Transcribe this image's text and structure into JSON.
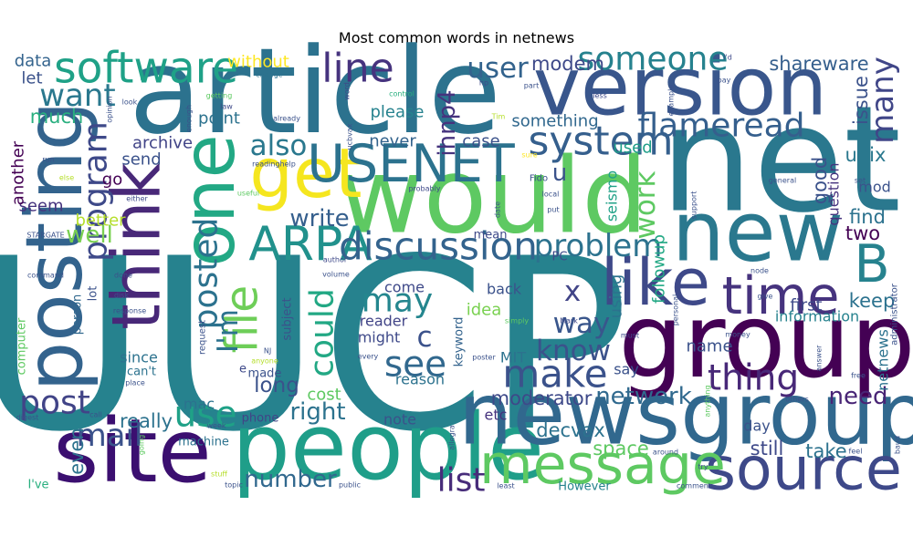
{
  "chart_data": {
    "type": "wordcloud",
    "title": "Most common words in netnews",
    "words": [
      {
        "text": "UUCP",
        "weight": 1.0,
        "color": "#26828e"
      },
      {
        "text": "net",
        "weight": 0.62,
        "color": "#2a788e"
      },
      {
        "text": "article",
        "weight": 0.5,
        "color": "#2c728e"
      },
      {
        "text": "would",
        "weight": 0.44,
        "color": "#5ec962"
      },
      {
        "text": "group",
        "weight": 0.43,
        "color": "#440154"
      },
      {
        "text": "people",
        "weight": 0.39,
        "color": "#1f9e89"
      },
      {
        "text": "site",
        "weight": 0.37,
        "color": "#3b0f70"
      },
      {
        "text": "newsgroup",
        "weight": 0.36,
        "color": "#31688e"
      },
      {
        "text": "new",
        "weight": 0.35,
        "color": "#2a788e"
      },
      {
        "text": "version",
        "weight": 0.34,
        "color": "#39568c"
      },
      {
        "text": "posting",
        "weight": 0.33,
        "color": "#33638d"
      },
      {
        "text": "one",
        "weight": 0.3,
        "color": "#22a884"
      },
      {
        "text": "get",
        "weight": 0.29,
        "color": "#f5e61f"
      },
      {
        "text": "think",
        "weight": 0.28,
        "color": "#482878"
      },
      {
        "text": "like",
        "weight": 0.27,
        "color": "#3e4989"
      },
      {
        "text": "source",
        "weight": 0.25,
        "color": "#3e4989"
      },
      {
        "text": "message",
        "weight": 0.23,
        "color": "#5ec962"
      },
      {
        "text": "USENET",
        "weight": 0.22,
        "color": "#2c728e"
      },
      {
        "text": "time",
        "weight": 0.22,
        "color": "#46337e"
      },
      {
        "text": "B",
        "weight": 0.22,
        "color": "#26828e"
      },
      {
        "text": "ARPA",
        "weight": 0.2,
        "color": "#21918c"
      },
      {
        "text": "file",
        "weight": 0.19,
        "color": "#6ece58"
      },
      {
        "text": "software",
        "weight": 0.18,
        "color": "#1fa187"
      },
      {
        "text": "line",
        "weight": 0.17,
        "color": "#46337e"
      },
      {
        "text": "system",
        "weight": 0.17,
        "color": "#355f8d"
      },
      {
        "text": "discussion",
        "weight": 0.16,
        "color": "#33638d"
      },
      {
        "text": "make",
        "weight": 0.16,
        "color": "#3b528b"
      },
      {
        "text": "thing",
        "weight": 0.15,
        "color": "#482878"
      },
      {
        "text": "use",
        "weight": 0.15,
        "color": "#1fa187"
      },
      {
        "text": "see",
        "weight": 0.15,
        "color": "#31688e"
      },
      {
        "text": "someone",
        "weight": 0.14,
        "color": "#26828e"
      },
      {
        "text": "flameread",
        "weight": 0.14,
        "color": "#355f8d"
      },
      {
        "text": "program",
        "weight": 0.14,
        "color": "#3e4989"
      },
      {
        "text": "posted",
        "weight": 0.14,
        "color": "#2c728e"
      },
      {
        "text": "could",
        "weight": 0.14,
        "color": "#22a884"
      },
      {
        "text": "may",
        "weight": 0.14,
        "color": "#24868e"
      },
      {
        "text": "post",
        "weight": 0.14,
        "color": "#414487"
      },
      {
        "text": "list",
        "weight": 0.14,
        "color": "#472c7a"
      },
      {
        "text": "want",
        "weight": 0.13,
        "color": "#2a788e"
      },
      {
        "text": "problem",
        "weight": 0.13,
        "color": "#2c728e"
      },
      {
        "text": "mail",
        "weight": 0.13,
        "color": "#3b528b"
      },
      {
        "text": "many",
        "weight": 0.13,
        "color": "#404688"
      },
      {
        "text": "user",
        "weight": 0.12,
        "color": "#33638d"
      },
      {
        "text": "also",
        "weight": 0.12,
        "color": "#2a788e"
      },
      {
        "text": "way",
        "weight": 0.12,
        "color": "#39568c"
      },
      {
        "text": "know",
        "weight": 0.12,
        "color": "#3b528b"
      },
      {
        "text": "I'm",
        "weight": 0.12,
        "color": "#2c728e"
      },
      {
        "text": "work",
        "weight": 0.12,
        "color": "#5ec962"
      },
      {
        "text": "c",
        "weight": 0.12,
        "color": "#3b528b"
      },
      {
        "text": "x",
        "weight": 0.12,
        "color": "#414487"
      },
      {
        "text": "u",
        "weight": 0.1,
        "color": "#3b528b"
      },
      {
        "text": "ihnp4",
        "weight": 0.1,
        "color": "#46337e"
      },
      {
        "text": "write",
        "weight": 0.1,
        "color": "#355f8d"
      },
      {
        "text": "well",
        "weight": 0.1,
        "color": "#7ad151"
      },
      {
        "text": "right",
        "weight": 0.1,
        "color": "#2c728e"
      },
      {
        "text": "number",
        "weight": 0.1,
        "color": "#31688e"
      },
      {
        "text": "network",
        "weight": 0.1,
        "color": "#30698e"
      },
      {
        "text": "need",
        "weight": 0.1,
        "color": "#482475"
      },
      {
        "text": "long",
        "weight": 0.09,
        "color": "#3b528b"
      },
      {
        "text": "much",
        "weight": 0.08,
        "color": "#29af7f"
      },
      {
        "text": "even",
        "weight": 0.08,
        "color": "#2c728e"
      },
      {
        "text": "really",
        "weight": 0.08,
        "color": "#2c728e"
      },
      {
        "text": "modem",
        "weight": 0.08,
        "color": "#3e4989"
      },
      {
        "text": "shareware",
        "weight": 0.08,
        "color": "#355f8d"
      },
      {
        "text": "good",
        "weight": 0.08,
        "color": "#3b528b"
      },
      {
        "text": "unix",
        "weight": 0.08,
        "color": "#2a788e"
      },
      {
        "text": "issue",
        "weight": 0.08,
        "color": "#3b528b"
      },
      {
        "text": "find",
        "weight": 0.08,
        "color": "#2c728e"
      },
      {
        "text": "two",
        "weight": 0.08,
        "color": "#440154"
      },
      {
        "text": "keep",
        "weight": 0.08,
        "color": "#2c728e"
      },
      {
        "text": "moderator",
        "weight": 0.08,
        "color": "#3e4989"
      },
      {
        "text": "take",
        "weight": 0.08,
        "color": "#2c728e"
      },
      {
        "text": "still",
        "weight": 0.08,
        "color": "#3e4989"
      },
      {
        "text": "space",
        "weight": 0.08,
        "color": "#5ec962"
      },
      {
        "text": "decvax",
        "weight": 0.08,
        "color": "#2c728e"
      },
      {
        "text": "without",
        "weight": 0.07,
        "color": "#fde725"
      },
      {
        "text": "let",
        "weight": 0.07,
        "color": "#3b528b"
      },
      {
        "text": "data",
        "weight": 0.07,
        "color": "#33638d"
      },
      {
        "text": "please",
        "weight": 0.07,
        "color": "#26828e"
      },
      {
        "text": "point",
        "weight": 0.07,
        "color": "#2c728e"
      },
      {
        "text": "something",
        "weight": 0.07,
        "color": "#31688e"
      },
      {
        "text": "archive",
        "weight": 0.07,
        "color": "#414487"
      },
      {
        "text": "send",
        "weight": 0.07,
        "color": "#3b528b"
      },
      {
        "text": "seem",
        "weight": 0.07,
        "color": "#46337e"
      },
      {
        "text": "go",
        "weight": 0.07,
        "color": "#440154"
      },
      {
        "text": "better",
        "weight": 0.07,
        "color": "#b5de2b"
      },
      {
        "text": "used",
        "weight": 0.07,
        "color": "#1f9e89"
      },
      {
        "text": "case",
        "weight": 0.07,
        "color": "#3b528b"
      },
      {
        "text": "never",
        "weight": 0.07,
        "color": "#33638d"
      },
      {
        "text": "another",
        "weight": 0.07,
        "color": "#440154"
      },
      {
        "text": "followup",
        "weight": 0.07,
        "color": "#22a884"
      },
      {
        "text": "seismo",
        "weight": 0.06,
        "color": "#1fa187"
      },
      {
        "text": "question",
        "weight": 0.06,
        "color": "#46337e"
      },
      {
        "text": "mod",
        "weight": 0.06,
        "color": "#3b528b"
      },
      {
        "text": "first",
        "weight": 0.07,
        "color": "#3e4989"
      },
      {
        "text": "name",
        "weight": 0.07,
        "color": "#3b528b"
      },
      {
        "text": "using",
        "weight": 0.07,
        "color": "#2c728e"
      },
      {
        "text": "information",
        "weight": 0.06,
        "color": "#26828e"
      },
      {
        "text": "netnews",
        "weight": 0.06,
        "color": "#2c728e"
      },
      {
        "text": "say",
        "weight": 0.06,
        "color": "#3b528b"
      },
      {
        "text": "day",
        "weight": 0.06,
        "color": "#3b528b"
      },
      {
        "text": "cost",
        "weight": 0.07,
        "color": "#5ec962"
      },
      {
        "text": "reason",
        "weight": 0.06,
        "color": "#2c728e"
      },
      {
        "text": "might",
        "weight": 0.06,
        "color": "#3e4989"
      },
      {
        "text": "idea",
        "weight": 0.07,
        "color": "#7ad151"
      },
      {
        "text": "back",
        "weight": 0.06,
        "color": "#3b528b"
      },
      {
        "text": "come",
        "weight": 0.06,
        "color": "#3e4989"
      },
      {
        "text": "note",
        "weight": 0.06,
        "color": "#3b528b"
      },
      {
        "text": "etc",
        "weight": 0.06,
        "color": "#46337e"
      },
      {
        "text": "MIT",
        "weight": 0.06,
        "color": "#2c728e"
      },
      {
        "text": "reader",
        "weight": 0.06,
        "color": "#414487"
      },
      {
        "text": "mac",
        "weight": 0.06,
        "color": "#2c728e"
      },
      {
        "text": "made",
        "weight": 0.05,
        "color": "#3b528b"
      },
      {
        "text": "subject",
        "weight": 0.05,
        "color": "#3b528b"
      },
      {
        "text": "machine",
        "weight": 0.05,
        "color": "#2c728e"
      },
      {
        "text": "phone",
        "weight": 0.05,
        "color": "#414487"
      },
      {
        "text": "since",
        "weight": 0.06,
        "color": "#2c728e"
      },
      {
        "text": "can't",
        "weight": 0.05,
        "color": "#2c728e"
      },
      {
        "text": "person",
        "weight": 0.05,
        "color": "#31688e"
      },
      {
        "text": "lot",
        "weight": 0.05,
        "color": "#3b528b"
      },
      {
        "text": "computer",
        "weight": 0.05,
        "color": "#5ec962"
      },
      {
        "text": "I've",
        "weight": 0.05,
        "color": "#29af7f"
      },
      {
        "text": "mean",
        "weight": 0.05,
        "color": "#3e4989"
      },
      {
        "text": "PC",
        "weight": 0.05,
        "color": "#3e4989"
      },
      {
        "text": "keyword",
        "weight": 0.05,
        "color": "#33638d"
      },
      {
        "text": "e",
        "weight": 0.05,
        "color": "#3e4989"
      },
      {
        "text": "However",
        "weight": 0.05,
        "color": "#26828e"
      },
      {
        "text": "administrator",
        "weight": 0.04,
        "color": "#3b528b"
      },
      {
        "text": "request",
        "weight": 0.04,
        "color": "#3b528b"
      },
      {
        "text": "I'd",
        "weight": 0.03,
        "color": "#3e4989"
      },
      {
        "text": "pay",
        "weight": 0.03,
        "color": "#3b528b"
      },
      {
        "text": "word",
        "weight": 0.03,
        "color": "#3e4989"
      },
      {
        "text": "change",
        "weight": 0.03,
        "color": "#2c728e"
      },
      {
        "text": "hp",
        "weight": 0.03,
        "color": "#3e4989"
      },
      {
        "text": "part",
        "weight": 0.03,
        "color": "#3b528b"
      },
      {
        "text": "less",
        "weight": 0.03,
        "color": "#3e4989"
      },
      {
        "text": "example",
        "weight": 0.03,
        "color": "#3b528b"
      },
      {
        "text": "look",
        "weight": 0.03,
        "color": "#3b528b"
      },
      {
        "text": "getting",
        "weight": 0.03,
        "color": "#5ec962"
      },
      {
        "text": "control",
        "weight": 0.03,
        "color": "#29af7f"
      },
      {
        "text": "ucbvax",
        "weight": 0.03,
        "color": "#3b528b"
      },
      {
        "text": "opinion",
        "weight": 0.03,
        "color": "#3b528b"
      },
      {
        "text": "law",
        "weight": 0.03,
        "color": "#3e4989"
      },
      {
        "text": "enough",
        "weight": 0.03,
        "color": "#3b528b"
      },
      {
        "text": "already",
        "weight": 0.03,
        "color": "#3b528b"
      },
      {
        "text": "Tim",
        "weight": 0.03,
        "color": "#b5de2b"
      },
      {
        "text": "Fido",
        "weight": 0.04,
        "color": "#3b528b"
      },
      {
        "text": "local",
        "weight": 0.03,
        "color": "#3b528b"
      },
      {
        "text": "readinghelp",
        "weight": 0.03,
        "color": "#3b528b"
      },
      {
        "text": "probably",
        "weight": 0.03,
        "color": "#3e4989"
      },
      {
        "text": "run",
        "weight": 0.03,
        "color": "#3b528b"
      },
      {
        "text": "else",
        "weight": 0.03,
        "color": "#b5de2b"
      },
      {
        "text": "sure",
        "weight": 0.03,
        "color": "#fde725"
      },
      {
        "text": "put",
        "weight": 0.03,
        "color": "#3b528b"
      },
      {
        "text": "support",
        "weight": 0.03,
        "color": "#3b528b"
      },
      {
        "text": "general",
        "weight": 0.03,
        "color": "#3b528b"
      },
      {
        "text": "set",
        "weight": 0.03,
        "color": "#3b528b"
      },
      {
        "text": "useful",
        "weight": 0.03,
        "color": "#5ec962"
      },
      {
        "text": "either",
        "weight": 0.03,
        "color": "#3e4989"
      },
      {
        "text": "date",
        "weight": 0.03,
        "color": "#3b528b"
      },
      {
        "text": "STARGATE",
        "weight": 0.03,
        "color": "#3b528b"
      },
      {
        "text": "node",
        "weight": 0.03,
        "color": "#3b528b"
      },
      {
        "text": "command",
        "weight": 0.03,
        "color": "#3b528b"
      },
      {
        "text": "author",
        "weight": 0.03,
        "color": "#3e4989"
      },
      {
        "text": "volume",
        "weight": 0.03,
        "color": "#3b528b"
      },
      {
        "text": "give",
        "weight": 0.03,
        "color": "#3b528b"
      },
      {
        "text": "done",
        "weight": 0.03,
        "color": "#3b528b"
      },
      {
        "text": "Mark",
        "weight": 0.03,
        "color": "#3e4989"
      },
      {
        "text": "personal",
        "weight": 0.03,
        "color": "#3b528b"
      },
      {
        "text": "disk",
        "weight": 0.03,
        "color": "#3b528b"
      },
      {
        "text": "response",
        "weight": 0.03,
        "color": "#3b528b"
      },
      {
        "text": "simply",
        "weight": 0.03,
        "color": "#5ec962"
      },
      {
        "text": "money",
        "weight": 0.03,
        "color": "#3b528b"
      },
      {
        "text": "NJ",
        "weight": 0.03,
        "color": "#3b528b"
      },
      {
        "text": "anyone",
        "weight": 0.03,
        "color": "#b5de2b"
      },
      {
        "text": "every",
        "weight": 0.03,
        "color": "#3b528b"
      },
      {
        "text": "poster",
        "weight": 0.03,
        "color": "#3b528b"
      },
      {
        "text": "must",
        "weight": 0.03,
        "color": "#3e4989"
      },
      {
        "text": "answer",
        "weight": 0.03,
        "color": "#3b528b"
      },
      {
        "text": "free",
        "weight": 0.03,
        "color": "#3b528b"
      },
      {
        "text": "place",
        "weight": 0.03,
        "color": "#3b528b"
      },
      {
        "text": "anything",
        "weight": 0.03,
        "color": "#5ec962"
      },
      {
        "text": "others",
        "weight": 0.03,
        "color": "#3b528b"
      },
      {
        "text": "digest",
        "weight": 0.03,
        "color": "#3b528b"
      },
      {
        "text": "call",
        "weight": 0.03,
        "color": "#3b528b"
      },
      {
        "text": "allegra",
        "weight": 0.03,
        "color": "#3b528b"
      },
      {
        "text": "baud",
        "weight": 0.03,
        "color": "#3b528b"
      },
      {
        "text": "feel",
        "weight": 0.03,
        "color": "#3b528b"
      },
      {
        "text": "week",
        "weight": 0.03,
        "color": "#3b528b"
      },
      {
        "text": "around",
        "weight": 0.03,
        "color": "#3b528b"
      },
      {
        "text": "going",
        "weight": 0.03,
        "color": "#5ec962"
      },
      {
        "text": "try",
        "weight": 0.03,
        "color": "#3b528b"
      },
      {
        "text": "stuff",
        "weight": 0.03,
        "color": "#b5de2b"
      },
      {
        "text": "public",
        "weight": 0.03,
        "color": "#3b528b"
      },
      {
        "text": "topic",
        "weight": 0.03,
        "color": "#3b528b"
      },
      {
        "text": "least",
        "weight": 0.03,
        "color": "#3b528b"
      },
      {
        "text": "comment",
        "weight": 0.03,
        "color": "#3b528b"
      }
    ]
  }
}
